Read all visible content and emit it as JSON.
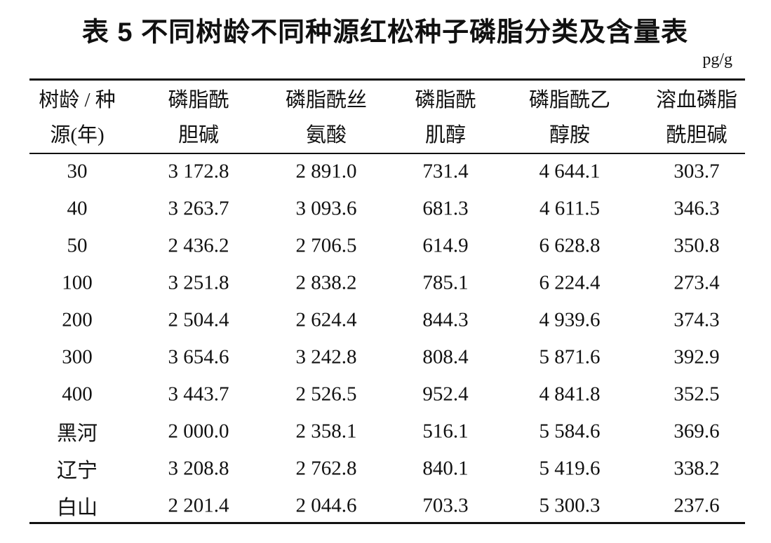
{
  "title": "表 5 不同树龄不同种源红松种子磷脂分类及含量表",
  "unit": "pg/g",
  "table": {
    "header": [
      [
        "树龄 / 种",
        "源(年)"
      ],
      [
        "磷脂酰",
        "胆碱"
      ],
      [
        "磷脂酰丝",
        "氨酸"
      ],
      [
        "磷脂酰",
        "肌醇"
      ],
      [
        "磷脂酰乙",
        "醇胺"
      ],
      [
        "溶血磷脂",
        "酰胆碱"
      ]
    ],
    "rows": [
      [
        "30",
        "3 172.8",
        "2 891.0",
        "731.4",
        "4 644.1",
        "303.7"
      ],
      [
        "40",
        "3 263.7",
        "3 093.6",
        "681.3",
        "4 611.5",
        "346.3"
      ],
      [
        "50",
        "2 436.2",
        "2 706.5",
        "614.9",
        "6 628.8",
        "350.8"
      ],
      [
        "100",
        "3 251.8",
        "2 838.2",
        "785.1",
        "6 224.4",
        "273.4"
      ],
      [
        "200",
        "2 504.4",
        "2 624.4",
        "844.3",
        "4 939.6",
        "374.3"
      ],
      [
        "300",
        "3 654.6",
        "3 242.8",
        "808.4",
        "5 871.6",
        "392.9"
      ],
      [
        "400",
        "3 443.7",
        "2 526.5",
        "952.4",
        "4 841.8",
        "352.5"
      ],
      [
        "黑河",
        "2 000.0",
        "2 358.1",
        "516.1",
        "5 584.6",
        "369.6"
      ],
      [
        "辽宁",
        "3 208.8",
        "2 762.8",
        "840.1",
        "5 419.6",
        "338.2"
      ],
      [
        "白山",
        "2 201.4",
        "2 044.6",
        "703.3",
        "5 300.3",
        "237.6"
      ]
    ]
  }
}
